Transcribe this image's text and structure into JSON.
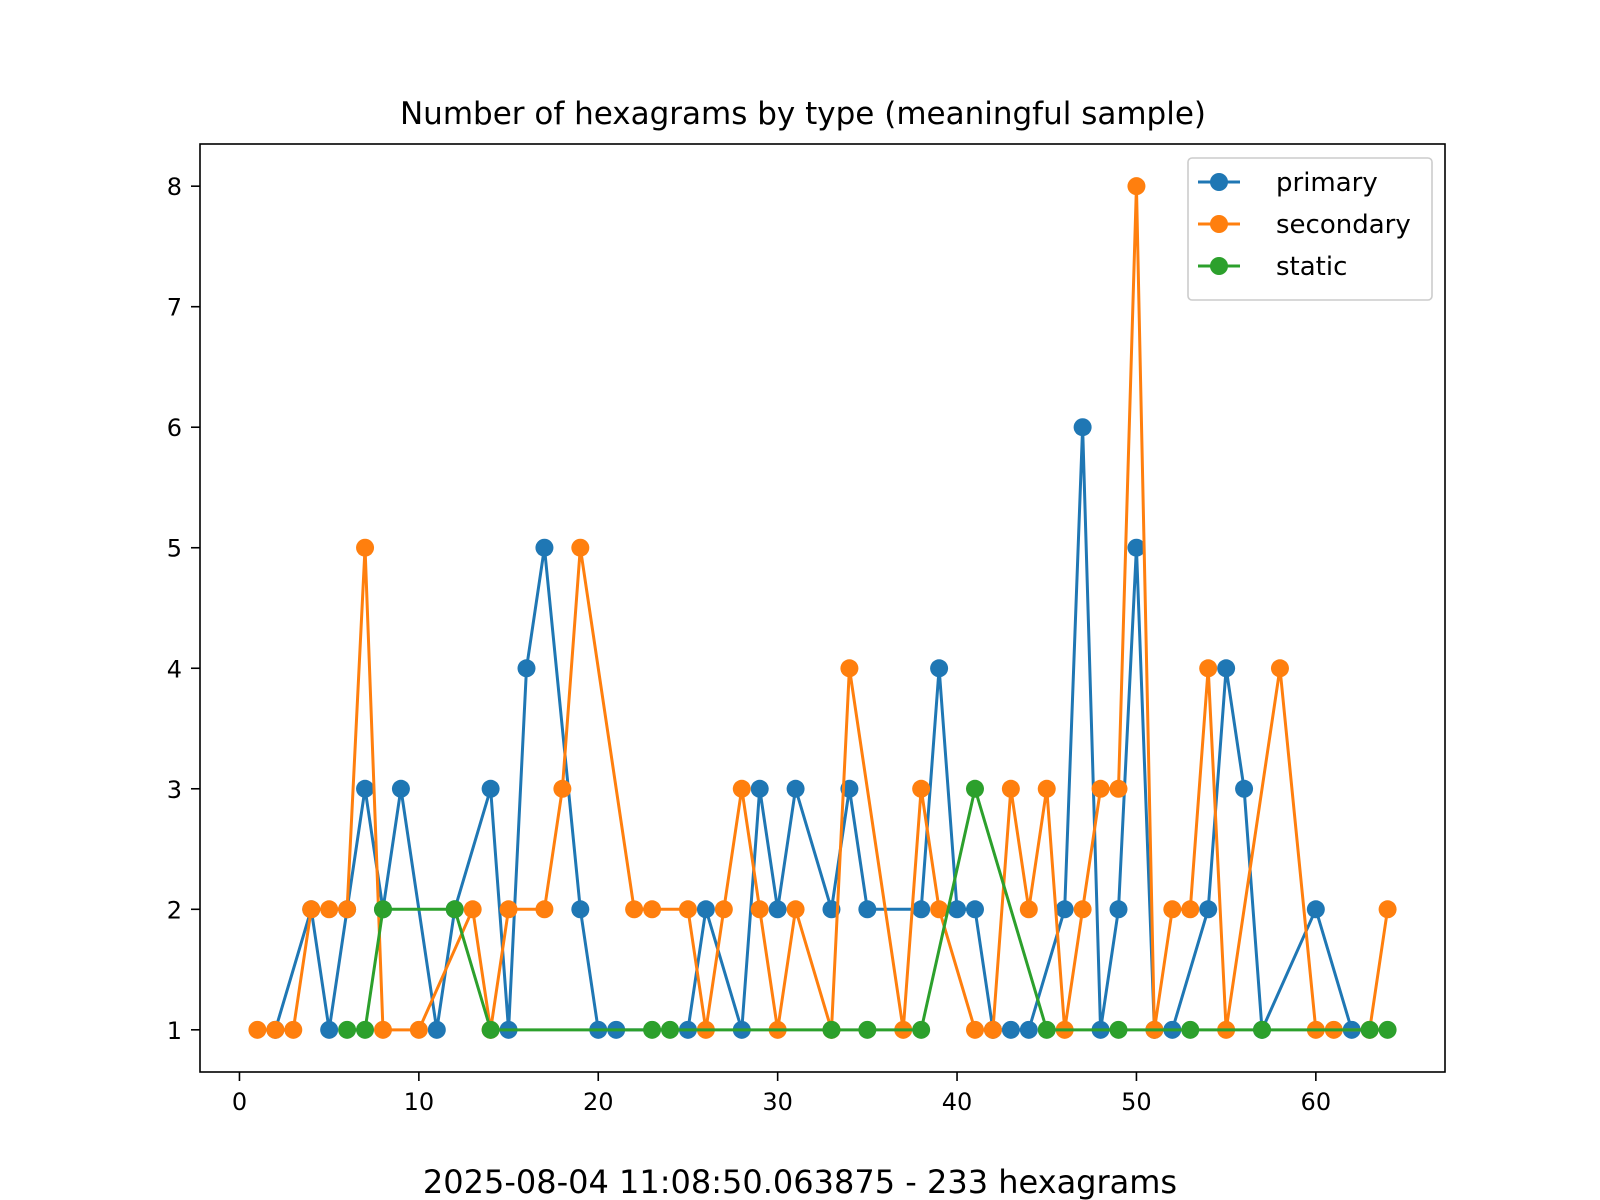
{
  "chart_data": {
    "type": "line",
    "title": "Number of hexagrams by type (meaningful sample)",
    "xlabel": "",
    "ylabel": "",
    "xlim": [
      -2.2,
      67.2
    ],
    "ylim": [
      0.65,
      8.35
    ],
    "xticks": [
      0,
      10,
      20,
      30,
      40,
      50,
      60
    ],
    "yticks": [
      1,
      2,
      3,
      4,
      5,
      6,
      7,
      8
    ],
    "grid": false,
    "legend_position": "top-right",
    "series": [
      {
        "name": "primary",
        "color": "#1f77b4",
        "points": [
          [
            2,
            1
          ],
          [
            4,
            2
          ],
          [
            5,
            1
          ],
          [
            6,
            2
          ],
          [
            7,
            3
          ],
          [
            8,
            2
          ],
          [
            9,
            3
          ],
          [
            11,
            1
          ],
          [
            12,
            2
          ],
          [
            14,
            3
          ],
          [
            15,
            1
          ],
          [
            16,
            4
          ],
          [
            17,
            5
          ],
          [
            19,
            2
          ],
          [
            20,
            1
          ],
          [
            21,
            1
          ],
          [
            25,
            1
          ],
          [
            26,
            2
          ],
          [
            28,
            1
          ],
          [
            29,
            3
          ],
          [
            30,
            2
          ],
          [
            31,
            3
          ],
          [
            33,
            2
          ],
          [
            34,
            3
          ],
          [
            35,
            2
          ],
          [
            38,
            2
          ],
          [
            39,
            4
          ],
          [
            40,
            2
          ],
          [
            41,
            2
          ],
          [
            42,
            1
          ],
          [
            43,
            1
          ],
          [
            44,
            1
          ],
          [
            46,
            2
          ],
          [
            47,
            6
          ],
          [
            48,
            1
          ],
          [
            49,
            2
          ],
          [
            50,
            5
          ],
          [
            51,
            1
          ],
          [
            52,
            1
          ],
          [
            54,
            2
          ],
          [
            55,
            4
          ],
          [
            56,
            3
          ],
          [
            57,
            1
          ],
          [
            60,
            2
          ],
          [
            62,
            1
          ]
        ]
      },
      {
        "name": "secondary",
        "color": "#ff7f0e",
        "points": [
          [
            1,
            1
          ],
          [
            2,
            1
          ],
          [
            3,
            1
          ],
          [
            4,
            2
          ],
          [
            5,
            2
          ],
          [
            6,
            2
          ],
          [
            7,
            5
          ],
          [
            8,
            1
          ],
          [
            10,
            1
          ],
          [
            13,
            2
          ],
          [
            14,
            1
          ],
          [
            15,
            2
          ],
          [
            17,
            2
          ],
          [
            18,
            3
          ],
          [
            19,
            5
          ],
          [
            22,
            2
          ],
          [
            23,
            2
          ],
          [
            25,
            2
          ],
          [
            26,
            1
          ],
          [
            27,
            2
          ],
          [
            28,
            3
          ],
          [
            29,
            2
          ],
          [
            30,
            1
          ],
          [
            31,
            2
          ],
          [
            33,
            1
          ],
          [
            34,
            4
          ],
          [
            37,
            1
          ],
          [
            38,
            3
          ],
          [
            39,
            2
          ],
          [
            41,
            1
          ],
          [
            42,
            1
          ],
          [
            43,
            3
          ],
          [
            44,
            2
          ],
          [
            45,
            3
          ],
          [
            46,
            1
          ],
          [
            47,
            2
          ],
          [
            48,
            3
          ],
          [
            49,
            3
          ],
          [
            50,
            8
          ],
          [
            51,
            1
          ],
          [
            52,
            2
          ],
          [
            53,
            2
          ],
          [
            54,
            4
          ],
          [
            55,
            1
          ],
          [
            58,
            4
          ],
          [
            60,
            1
          ],
          [
            61,
            1
          ],
          [
            63,
            1
          ],
          [
            64,
            2
          ]
        ]
      },
      {
        "name": "static",
        "color": "#2ca02c",
        "points": [
          [
            6,
            1
          ],
          [
            7,
            1
          ],
          [
            8,
            2
          ],
          [
            12,
            2
          ],
          [
            14,
            1
          ],
          [
            23,
            1
          ],
          [
            24,
            1
          ],
          [
            33,
            1
          ],
          [
            35,
            1
          ],
          [
            38,
            1
          ],
          [
            41,
            3
          ],
          [
            45,
            1
          ],
          [
            49,
            1
          ],
          [
            53,
            1
          ],
          [
            57,
            1
          ],
          [
            63,
            1
          ],
          [
            64,
            1
          ]
        ]
      }
    ]
  },
  "footer": {
    "text": "2025-08-04 11:08:50.063875 - 233 hexagrams"
  }
}
